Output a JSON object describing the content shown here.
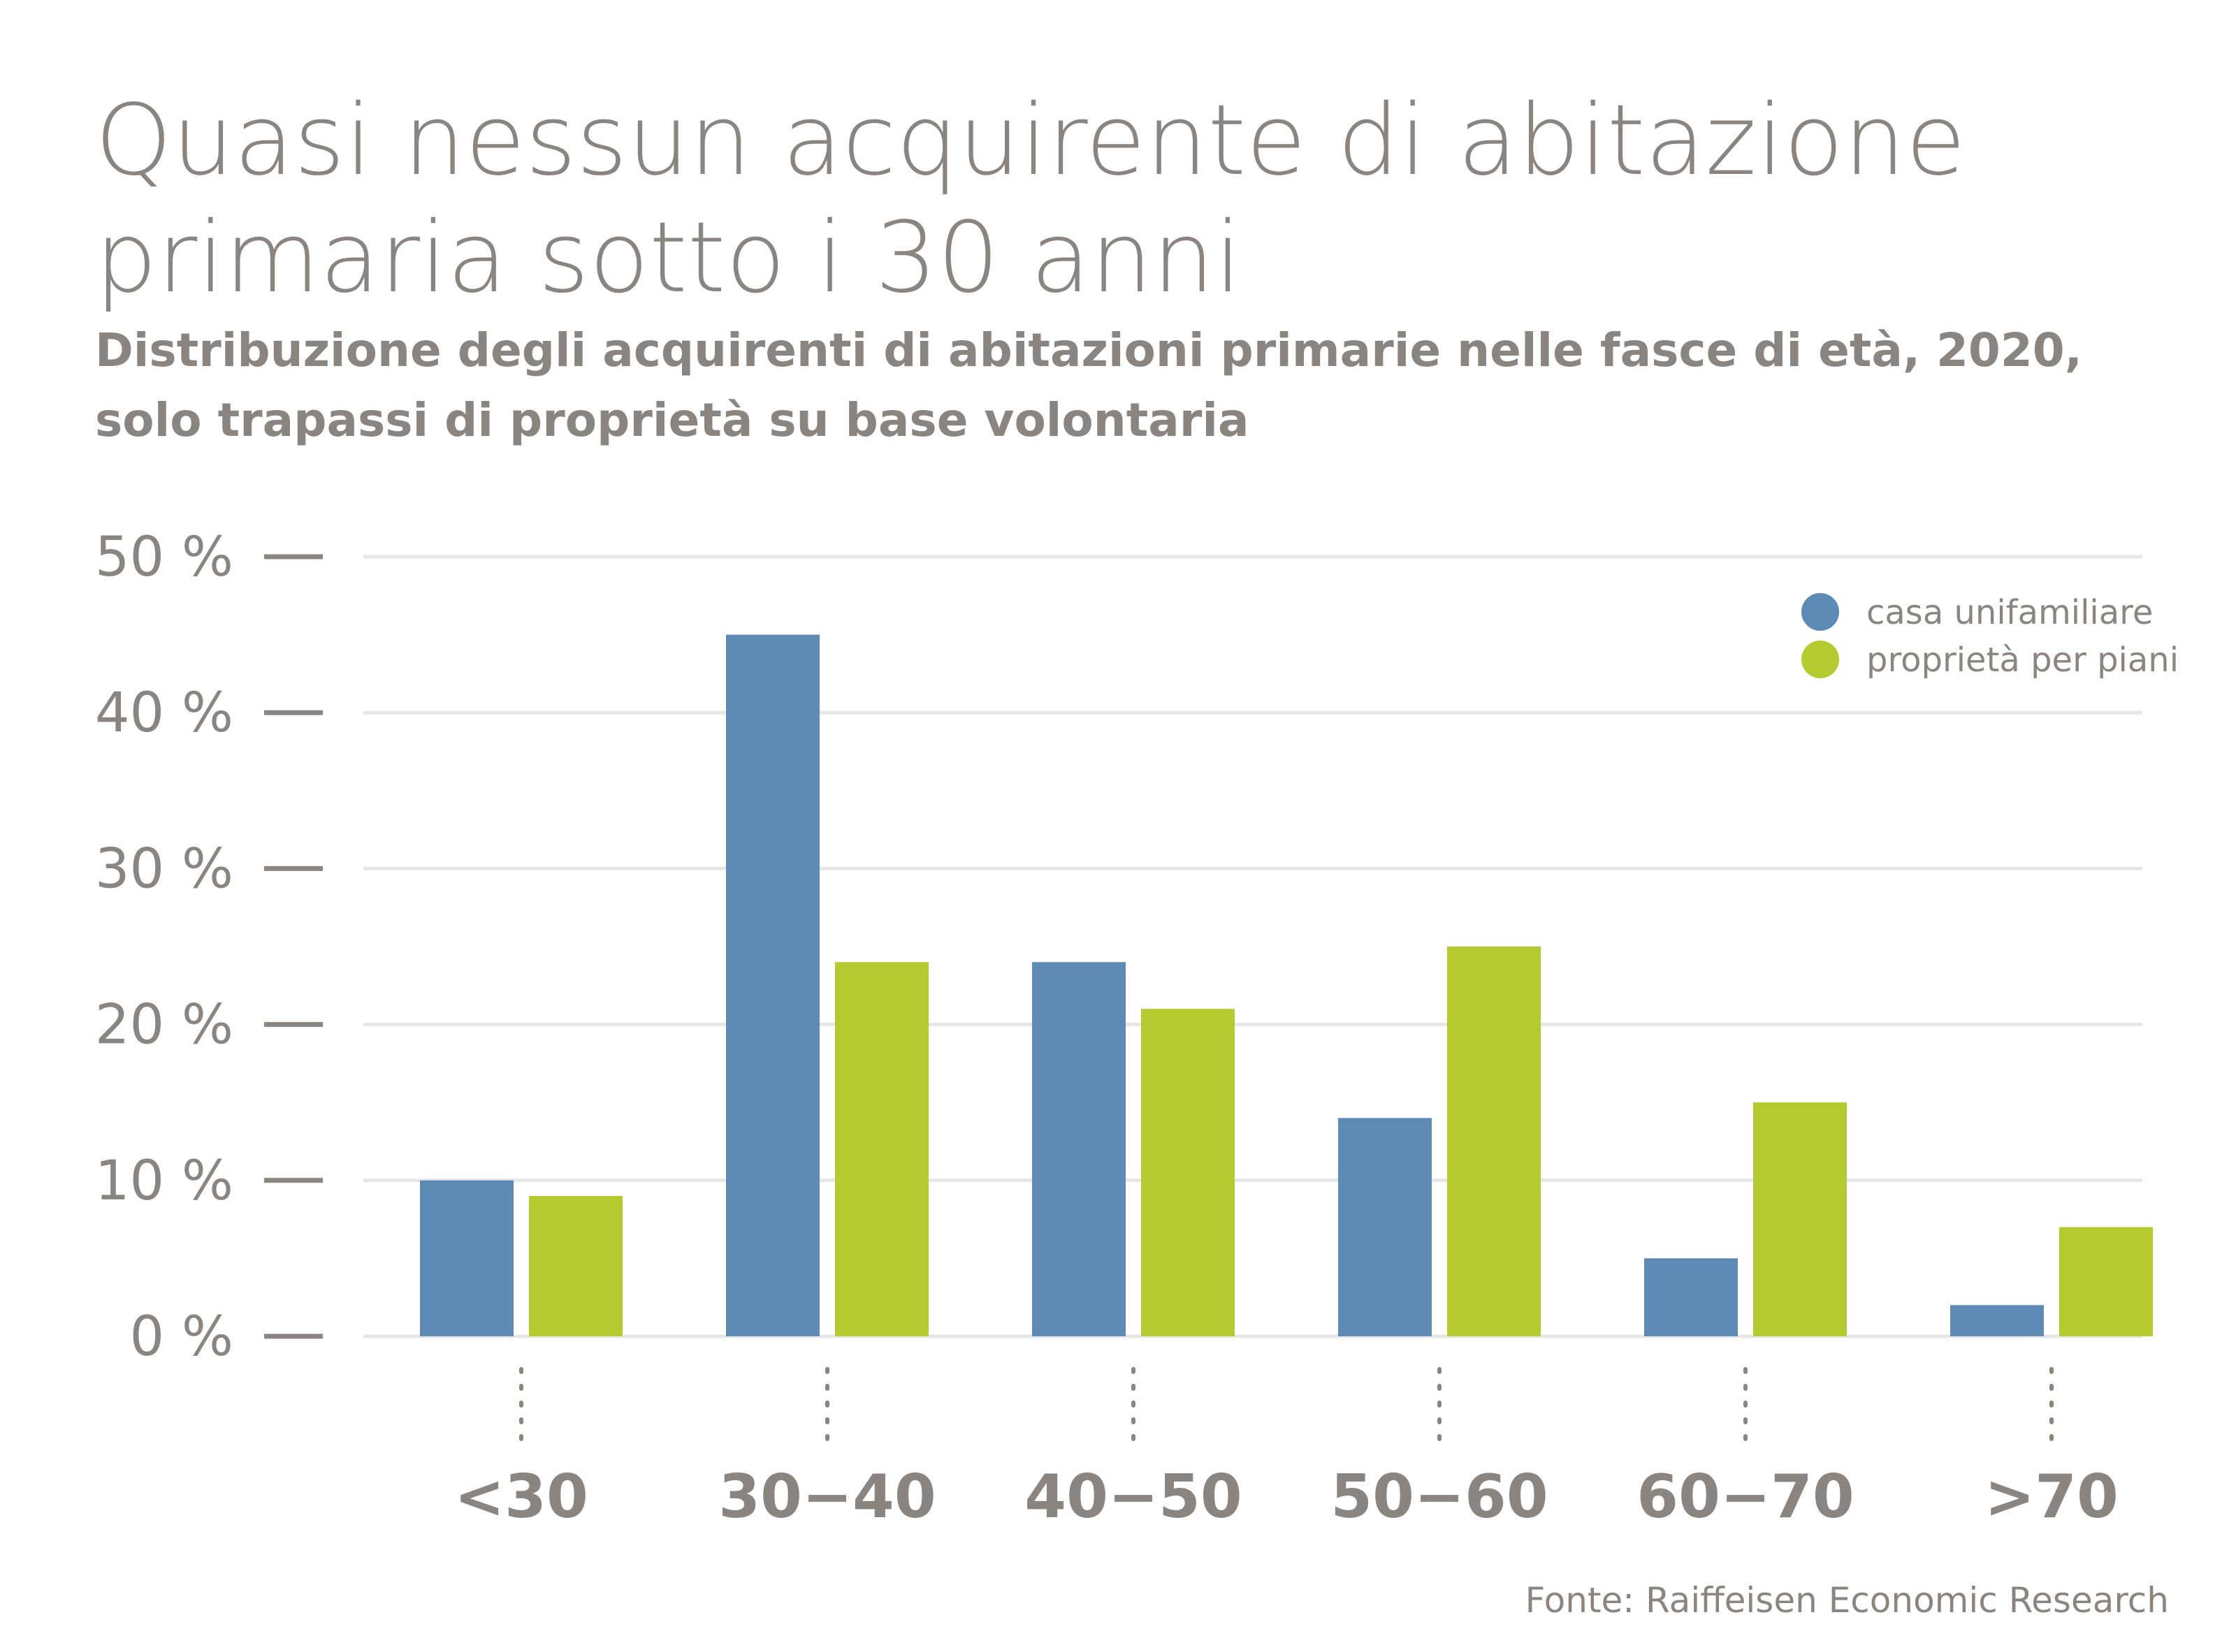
{
  "header": {
    "title_line1": "Quasi nessun acquirente di abitazione",
    "title_line2": "primaria sotto i 30 anni",
    "subtitle_line1": "Distribuzione degli acquirenti di abitazioni primarie nelle fasce di età, 2020,",
    "subtitle_line2": "solo trapassi di proprietà su base volontaria"
  },
  "source": "Fonte: Raiffeisen Economic Research",
  "colors": {
    "casa": "#5e8ab6",
    "ppp": "#b4ca2e",
    "text": "#8a8580",
    "grid": "#e6e6e6"
  },
  "chart_data": {
    "type": "bar",
    "title": "Quasi nessun acquirente di abitazione primaria sotto i 30 anni",
    "xlabel": "",
    "ylabel": "",
    "categories": [
      "<30",
      "30−40",
      "40−50",
      "50−60",
      "60−70",
      ">70"
    ],
    "series": [
      {
        "name": "casa unifamiliare",
        "values": [
          10,
          45,
          24,
          14,
          5,
          2
        ]
      },
      {
        "name": "proprietà per piani",
        "values": [
          9,
          24,
          21,
          25,
          15,
          7
        ]
      }
    ],
    "ylim": [
      0,
      50
    ],
    "yticks": [
      0,
      10,
      20,
      30,
      40,
      50
    ],
    "ytick_labels": [
      "0 %",
      "10 %",
      "20 %",
      "30 %",
      "40 %",
      "50 %"
    ],
    "grid": true,
    "legend_position": "top-right"
  }
}
